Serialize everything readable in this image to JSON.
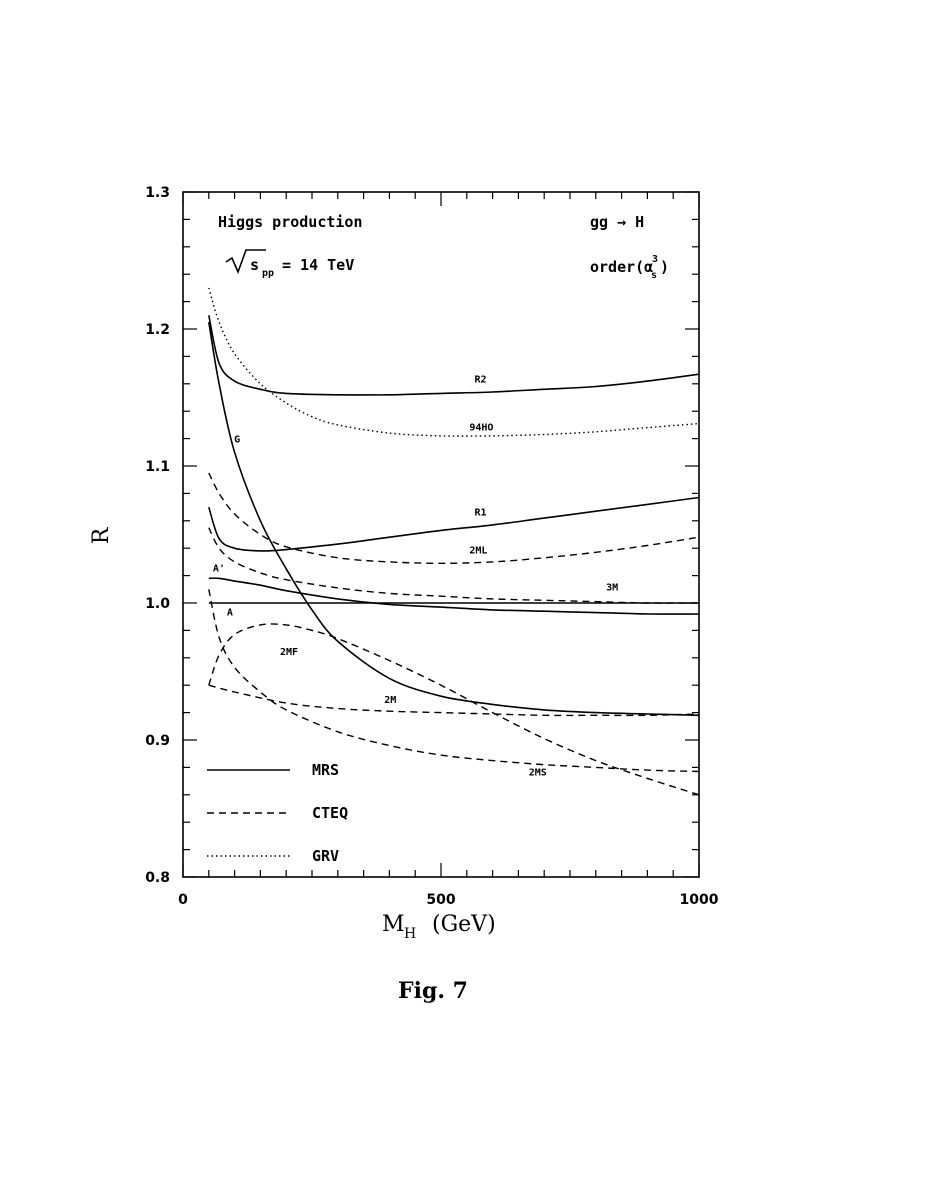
{
  "chart_data": {
    "type": "line",
    "xlabel": "M",
    "xlabel_sub": "H",
    "xlabel_unit": "(GeV)",
    "ylabel": "R",
    "xlim": [
      0,
      1000
    ],
    "ylim": [
      0.8,
      1.3
    ],
    "xticks": [
      "0",
      "500",
      "1000"
    ],
    "yticks": [
      "0.8",
      "0.9",
      "1.0",
      "1.1",
      "1.2",
      "1.3"
    ],
    "grid": false,
    "annotations": {
      "process": "Higgs production",
      "energy": "= 14 TeV",
      "energy_root": "s",
      "energy_sub": "pp",
      "channel": "gg → H",
      "order": "order(α",
      "order_sub": "s",
      "order_sup": "3",
      "order_close": ")"
    },
    "legend": {
      "placement": "bottom-left",
      "entries": [
        {
          "label": "MRS",
          "style": "solid"
        },
        {
          "label": "CTEQ",
          "style": "dashed"
        },
        {
          "label": "GRV",
          "style": "dotted"
        }
      ]
    },
    "series": [
      {
        "name": "R2",
        "family": "MRS",
        "style": "solid",
        "x": [
          50,
          70,
          100,
          150,
          200,
          300,
          400,
          500,
          600,
          700,
          800,
          900,
          1000
        ],
        "y": [
          1.21,
          1.175,
          1.162,
          1.156,
          1.153,
          1.152,
          1.152,
          1.153,
          1.154,
          1.156,
          1.158,
          1.162,
          1.167
        ]
      },
      {
        "name": "G",
        "family": "MRS",
        "style": "solid",
        "x": [
          50,
          70,
          100,
          150,
          200,
          250,
          300,
          400,
          500,
          600,
          700,
          800,
          900,
          1000
        ],
        "y": [
          1.205,
          1.16,
          1.11,
          1.06,
          1.025,
          0.995,
          0.972,
          0.945,
          0.932,
          0.926,
          0.922,
          0.92,
          0.919,
          0.918
        ]
      },
      {
        "name": "R1",
        "family": "MRS",
        "style": "solid",
        "x": [
          50,
          70,
          100,
          150,
          200,
          300,
          400,
          500,
          600,
          700,
          800,
          900,
          1000
        ],
        "y": [
          1.07,
          1.047,
          1.04,
          1.038,
          1.039,
          1.043,
          1.048,
          1.053,
          1.057,
          1.062,
          1.067,
          1.072,
          1.077
        ]
      },
      {
        "name": "A'",
        "family": "MRS",
        "style": "solid",
        "x": [
          50,
          70,
          100,
          150,
          200,
          300,
          400,
          500,
          600,
          700,
          800,
          900,
          1000
        ],
        "y": [
          1.018,
          1.018,
          1.016,
          1.013,
          1.009,
          1.003,
          0.999,
          0.997,
          0.995,
          0.994,
          0.993,
          0.992,
          0.992
        ]
      },
      {
        "name": "A",
        "family": "MRS",
        "style": "solid",
        "x": [
          50,
          1000
        ],
        "y": [
          1.0,
          1.0
        ]
      },
      {
        "name": "94HO",
        "family": "GRV",
        "style": "dotted",
        "x": [
          50,
          70,
          100,
          150,
          200,
          250,
          300,
          400,
          500,
          600,
          700,
          800,
          900,
          1000
        ],
        "y": [
          1.23,
          1.205,
          1.182,
          1.16,
          1.146,
          1.136,
          1.13,
          1.124,
          1.122,
          1.122,
          1.123,
          1.125,
          1.128,
          1.131
        ]
      },
      {
        "name": "2ML",
        "family": "CTEQ",
        "style": "dashed",
        "x": [
          50,
          70,
          100,
          150,
          200,
          300,
          400,
          500,
          600,
          700,
          800,
          900,
          1000
        ],
        "y": [
          1.095,
          1.08,
          1.065,
          1.05,
          1.041,
          1.033,
          1.03,
          1.029,
          1.03,
          1.033,
          1.037,
          1.042,
          1.048
        ]
      },
      {
        "name": "3M",
        "family": "CTEQ",
        "style": "dashed",
        "x": [
          50,
          70,
          100,
          150,
          200,
          300,
          400,
          500,
          600,
          700,
          800,
          900,
          1000
        ],
        "y": [
          1.055,
          1.04,
          1.03,
          1.022,
          1.017,
          1.011,
          1.007,
          1.005,
          1.003,
          1.002,
          1.001,
          1.0,
          1.0
        ]
      },
      {
        "name": "2MF",
        "family": "CTEQ",
        "style": "dashed",
        "x": [
          50,
          70,
          100,
          150,
          200,
          250,
          300,
          400,
          500,
          600,
          700,
          800,
          900,
          1000
        ],
        "y": [
          0.94,
          0.962,
          0.977,
          0.984,
          0.984,
          0.98,
          0.974,
          0.958,
          0.94,
          0.92,
          0.901,
          0.885,
          0.872,
          0.86
        ]
      },
      {
        "name": "2M",
        "family": "CTEQ",
        "style": "dashed",
        "x": [
          50,
          100,
          200,
          300,
          400,
          500,
          600,
          700,
          800,
          900,
          1000
        ],
        "y": [
          0.94,
          0.935,
          0.927,
          0.923,
          0.921,
          0.92,
          0.919,
          0.918,
          0.918,
          0.918,
          0.919
        ]
      },
      {
        "name": "2MS",
        "family": "CTEQ",
        "style": "dashed",
        "x": [
          50,
          70,
          100,
          150,
          200,
          300,
          400,
          500,
          600,
          700,
          800,
          900,
          1000
        ],
        "y": [
          1.01,
          0.975,
          0.953,
          0.935,
          0.922,
          0.906,
          0.896,
          0.889,
          0.885,
          0.882,
          0.88,
          0.878,
          0.877
        ]
      }
    ],
    "caption": "Fig. 7"
  }
}
